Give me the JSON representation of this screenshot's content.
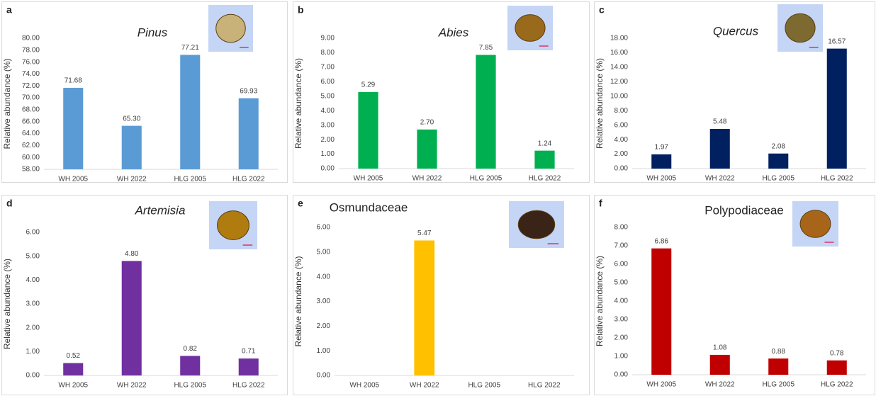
{
  "chart_data": [
    {
      "type": "bar",
      "panel": "a",
      "title": "Pinus",
      "italic": true,
      "ylabel": "Relative abundance (%)",
      "categories": [
        "WH 2005",
        "WH 2022",
        "HLG 2005",
        "HLG 2022"
      ],
      "values": [
        71.68,
        65.3,
        77.21,
        69.93
      ],
      "value_labels": [
        "71.68",
        "65.30",
        "77.21",
        "69.93"
      ],
      "color": "#5b9bd5",
      "ylim": [
        58,
        80
      ],
      "yticks": [
        {
          "value": 58,
          "label": "58.00"
        },
        {
          "value": 60,
          "label": "60.00"
        },
        {
          "value": 62,
          "label": "62.00"
        },
        {
          "value": 64,
          "label": "64.00"
        },
        {
          "value": 66,
          "label": "66.00"
        },
        {
          "value": 68,
          "label": "68.00"
        },
        {
          "value": 70,
          "label": "70.00"
        },
        {
          "value": 72,
          "label": "72.00"
        },
        {
          "value": 74,
          "label": "74.00"
        },
        {
          "value": 76,
          "label": "76.00"
        },
        {
          "value": 78,
          "label": "78.00"
        },
        {
          "value": 80,
          "label": "80.00"
        }
      ]
    },
    {
      "type": "bar",
      "panel": "b",
      "title": "Abies",
      "italic": true,
      "ylabel": "Relative abundance (%)",
      "categories": [
        "WH 2005",
        "WH 2022",
        "HLG 2005",
        "HLG 2022"
      ],
      "values": [
        5.29,
        2.7,
        7.85,
        1.24
      ],
      "value_labels": [
        "5.29",
        "2.70",
        "7.85",
        "1.24"
      ],
      "color": "#00b050",
      "ylim": [
        0,
        9
      ],
      "yticks": [
        {
          "value": 0,
          "label": "0.00"
        },
        {
          "value": 1,
          "label": "1.00"
        },
        {
          "value": 2,
          "label": "2.00"
        },
        {
          "value": 3,
          "label": "3.00"
        },
        {
          "value": 4,
          "label": "4.00"
        },
        {
          "value": 5,
          "label": "5.00"
        },
        {
          "value": 6,
          "label": "6.00"
        },
        {
          "value": 7,
          "label": "7.00"
        },
        {
          "value": 8,
          "label": "8.00"
        },
        {
          "value": 9,
          "label": "9.00"
        }
      ]
    },
    {
      "type": "bar",
      "panel": "c",
      "title": "Quercus",
      "italic": true,
      "ylabel": "Relative abundance (%)",
      "categories": [
        "WH 2005",
        "WH 2022",
        "HLG 2005",
        "HLG 2022"
      ],
      "values": [
        1.97,
        5.48,
        2.08,
        16.57
      ],
      "value_labels": [
        "1.97",
        "5.48",
        "2.08",
        "16.57"
      ],
      "color": "#002060",
      "ylim": [
        0,
        18
      ],
      "yticks": [
        {
          "value": 0,
          "label": "0.00"
        },
        {
          "value": 2,
          "label": "2.00"
        },
        {
          "value": 4,
          "label": "4.00"
        },
        {
          "value": 6,
          "label": "6.00"
        },
        {
          "value": 8,
          "label": "8.00"
        },
        {
          "value": 10,
          "label": "10.00"
        },
        {
          "value": 12,
          "label": "12.00"
        },
        {
          "value": 14,
          "label": "14.00"
        },
        {
          "value": 16,
          "label": "16.00"
        },
        {
          "value": 18,
          "label": "18.00"
        }
      ]
    },
    {
      "type": "bar",
      "panel": "d",
      "title": "Artemisia",
      "italic": true,
      "ylabel": "Relative abundance (%)",
      "categories": [
        "WH 2005",
        "WH 2022",
        "HLG 2005",
        "HLG 2022"
      ],
      "values": [
        0.52,
        4.8,
        0.82,
        0.71
      ],
      "value_labels": [
        "0.52",
        "4.80",
        "0.82",
        "0.71"
      ],
      "color": "#7030a0",
      "ylim": [
        0,
        6
      ],
      "yticks": [
        {
          "value": 0,
          "label": "0.00"
        },
        {
          "value": 1,
          "label": "1.00"
        },
        {
          "value": 2,
          "label": "2.00"
        },
        {
          "value": 3,
          "label": "3.00"
        },
        {
          "value": 4,
          "label": "4.00"
        },
        {
          "value": 5,
          "label": "5.00"
        },
        {
          "value": 6,
          "label": "6.00"
        }
      ]
    },
    {
      "type": "bar",
      "panel": "e",
      "title": "Osmundaceae",
      "italic": false,
      "ylabel": "Relative abundance (%)",
      "categories": [
        "WH 2005",
        "WH 2022",
        "HLG 2005",
        "HLG 2022"
      ],
      "values": [
        0,
        5.47,
        0,
        0
      ],
      "value_labels": [
        null,
        "5.47",
        null,
        null
      ],
      "color": "#ffc000",
      "ylim": [
        0,
        6
      ],
      "yticks": [
        {
          "value": 0,
          "label": "0.00"
        },
        {
          "value": 1,
          "label": "1.00"
        },
        {
          "value": 2,
          "label": "2.00"
        },
        {
          "value": 3,
          "label": "3.00"
        },
        {
          "value": 4,
          "label": "4.00"
        },
        {
          "value": 5,
          "label": "5.00"
        },
        {
          "value": 6,
          "label": "6.00"
        }
      ]
    },
    {
      "type": "bar",
      "panel": "f",
      "title": "Polypodiaceae",
      "italic": false,
      "ylabel": "Relative abundance (%)",
      "categories": [
        "WH 2005",
        "WH 2022",
        "HLG 2005",
        "HLG 2022"
      ],
      "values": [
        6.86,
        1.08,
        0.88,
        0.78
      ],
      "value_labels": [
        "6.86",
        "1.08",
        "0.88",
        "0.78"
      ],
      "color": "#c00000",
      "ylim": [
        0,
        8
      ],
      "yticks": [
        {
          "value": 0,
          "label": "0.00"
        },
        {
          "value": 1,
          "label": "1.00"
        },
        {
          "value": 2,
          "label": "2.00"
        },
        {
          "value": 3,
          "label": "3.00"
        },
        {
          "value": 4,
          "label": "4.00"
        },
        {
          "value": 5,
          "label": "5.00"
        },
        {
          "value": 6,
          "label": "6.00"
        },
        {
          "value": 7,
          "label": "7.00"
        },
        {
          "value": 8,
          "label": "8.00"
        }
      ]
    }
  ]
}
